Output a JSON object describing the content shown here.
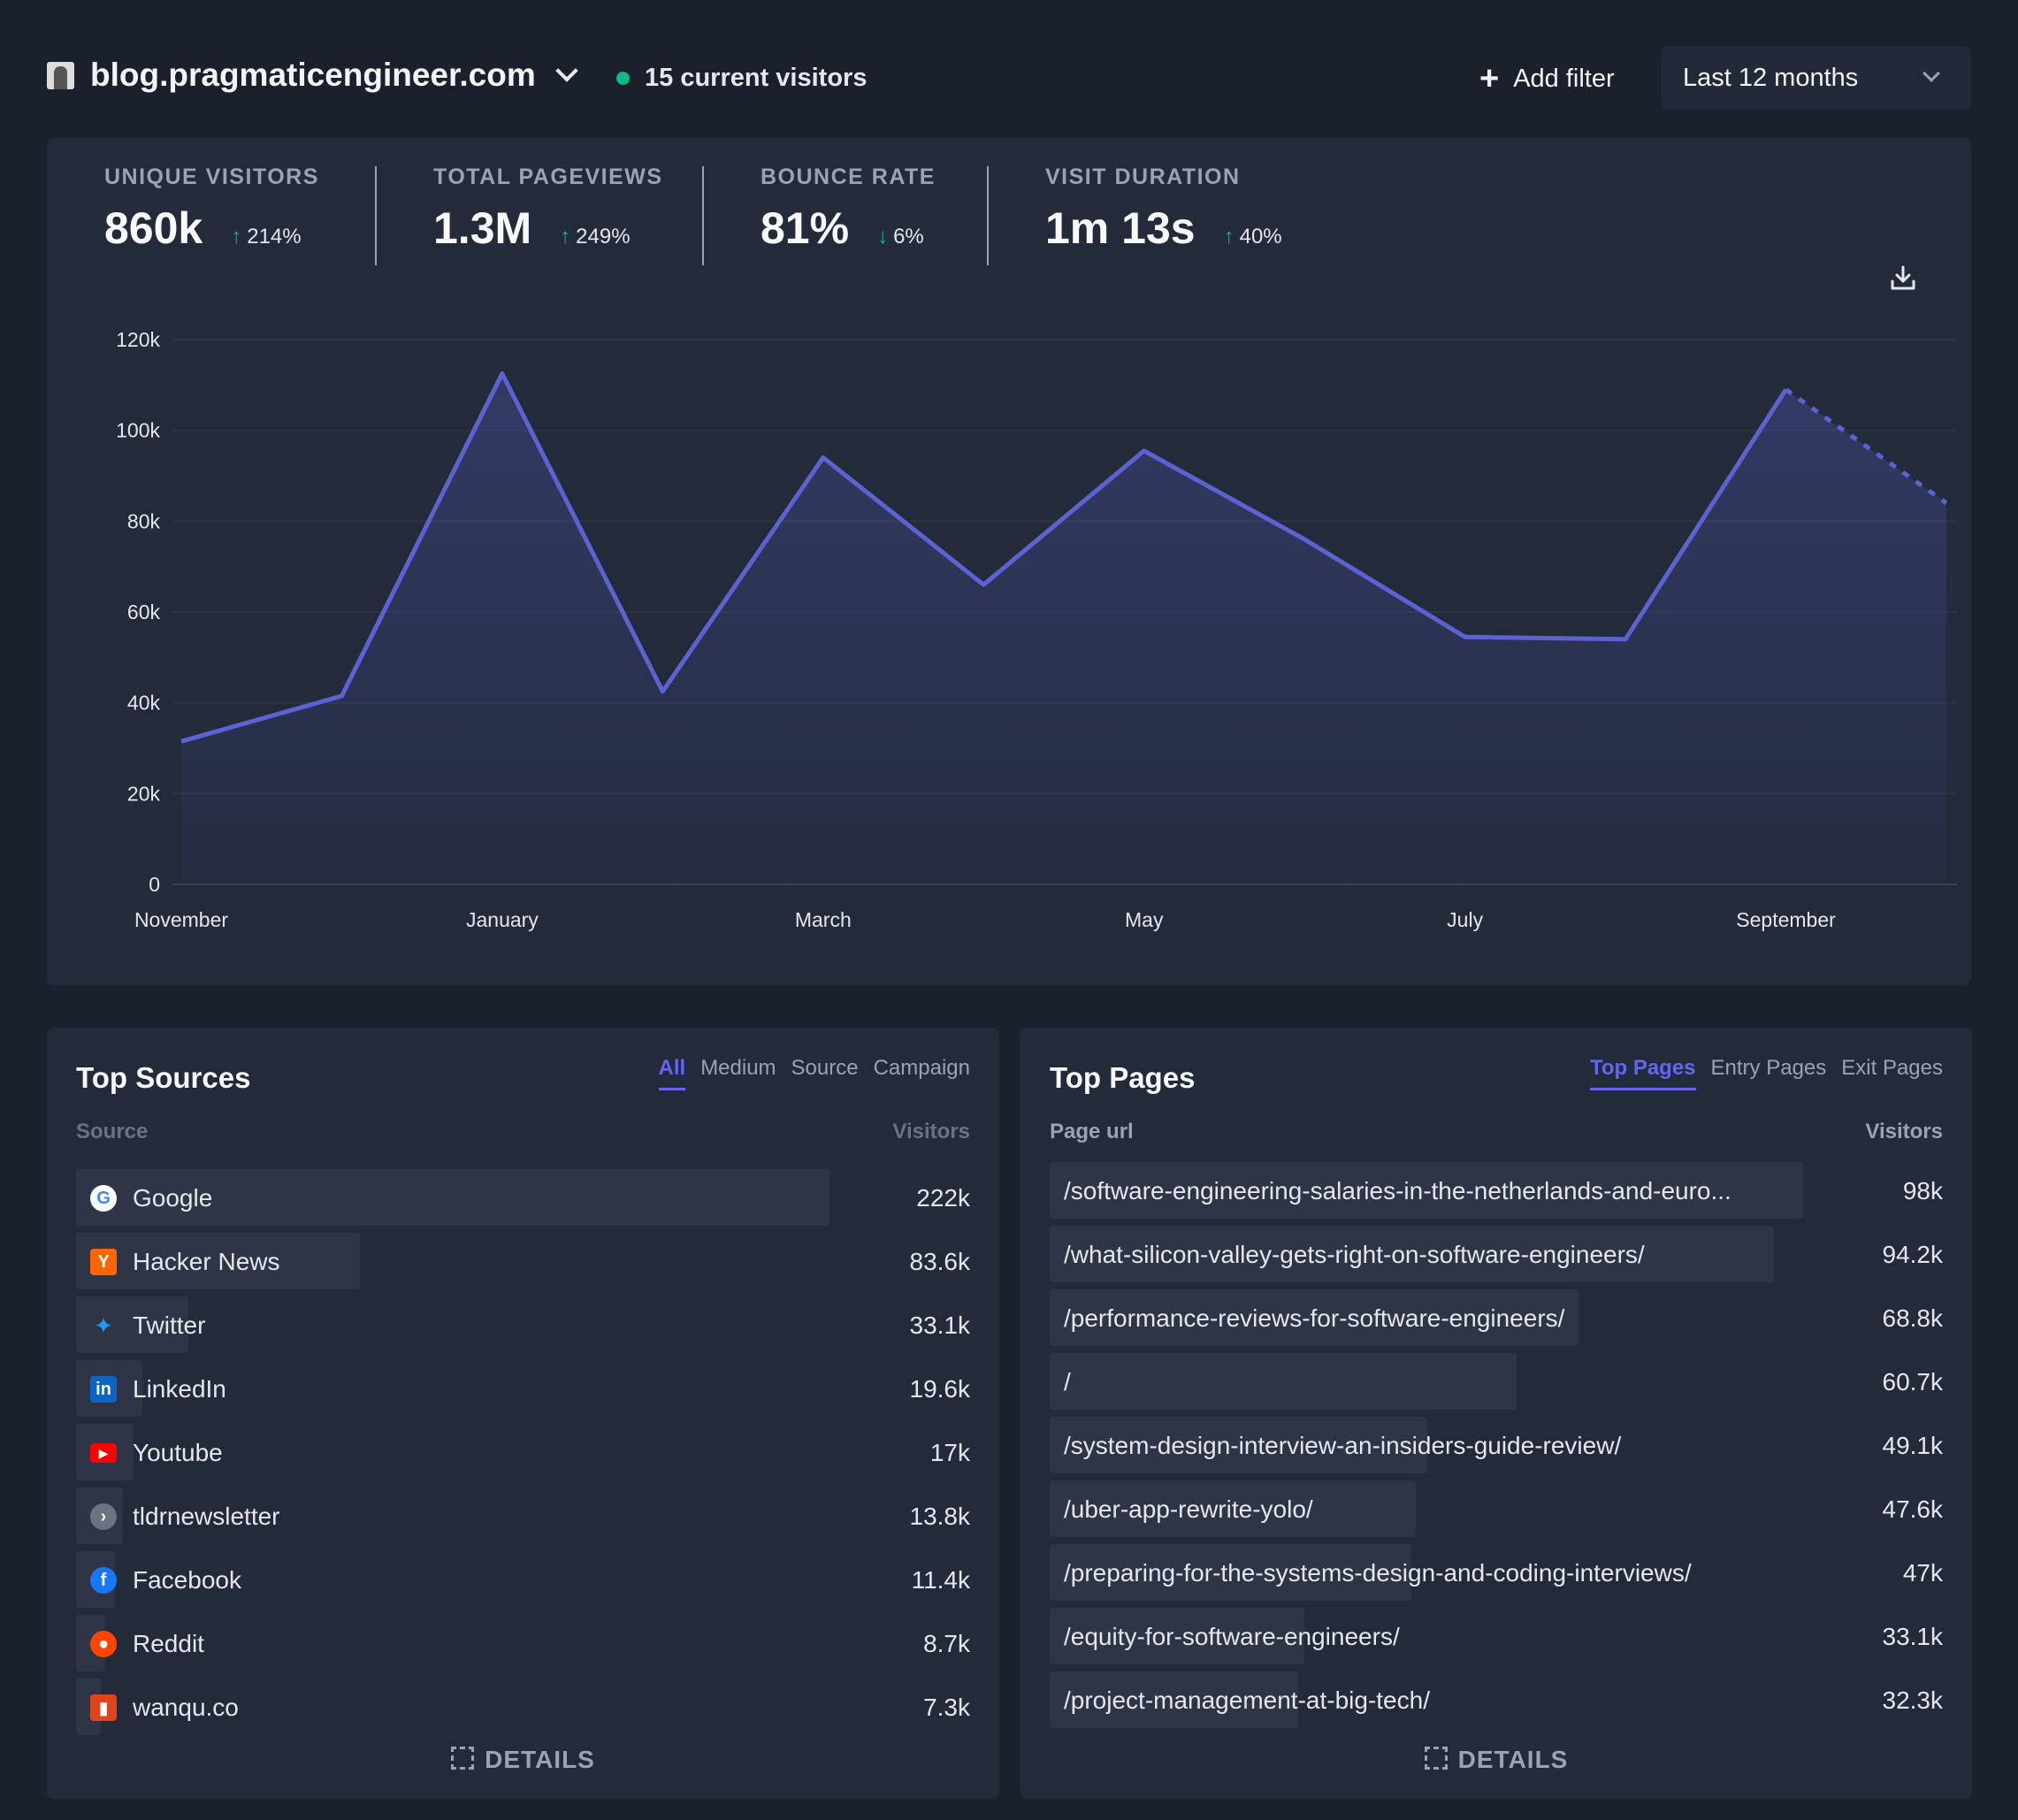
{
  "header": {
    "site_name": "blog.pragmaticengineer.com",
    "current_visitors": "15 current visitors",
    "add_filter": "Add filter",
    "period": "Last 12 months"
  },
  "stats": [
    {
      "label": "UNIQUE VISITORS",
      "value": "860k",
      "change": "214%",
      "direction": "up"
    },
    {
      "label": "TOTAL PAGEVIEWS",
      "value": "1.3M",
      "change": "249%",
      "direction": "up"
    },
    {
      "label": "BOUNCE RATE",
      "value": "81%",
      "change": "6%",
      "direction": "down"
    },
    {
      "label": "VISIT DURATION",
      "value": "1m 13s",
      "change": "40%",
      "direction": "up"
    }
  ],
  "chart_data": {
    "type": "area",
    "x": [
      "November",
      "December",
      "January",
      "February",
      "March",
      "April",
      "May",
      "June",
      "July",
      "August",
      "September",
      "October"
    ],
    "x_tick_labels": [
      "November",
      "January",
      "March",
      "May",
      "July",
      "September"
    ],
    "values": [
      31500,
      41500,
      112500,
      42500,
      94000,
      66000,
      95500,
      76000,
      54500,
      54000,
      109000,
      84000
    ],
    "ylim": [
      0,
      120000
    ],
    "y_tick_labels": [
      "0",
      "20k",
      "40k",
      "60k",
      "80k",
      "100k",
      "120k"
    ],
    "y_ticks": [
      0,
      20000,
      40000,
      60000,
      80000,
      100000,
      120000
    ],
    "incomplete_last_segment": true,
    "color": "#5b63d3",
    "grid": true
  },
  "sources": {
    "title": "Top Sources",
    "tabs": [
      "All",
      "Medium",
      "Source",
      "Campaign"
    ],
    "active_tab": "All",
    "col_label": "Source",
    "col_value": "Visitors",
    "details": "DETAILS",
    "rows": [
      {
        "name": "Google",
        "value": "222k",
        "visitors": 222000,
        "icon": "google-icon",
        "color": "#4285f4"
      },
      {
        "name": "Hacker News",
        "value": "83.6k",
        "visitors": 83600,
        "icon": "hacker-news-icon",
        "color": "#ff6600"
      },
      {
        "name": "Twitter",
        "value": "33.1k",
        "visitors": 33100,
        "icon": "twitter-icon",
        "color": "#1d9bf0"
      },
      {
        "name": "LinkedIn",
        "value": "19.6k",
        "visitors": 19600,
        "icon": "linkedin-icon",
        "color": "#0a66c2"
      },
      {
        "name": "Youtube",
        "value": "17k",
        "visitors": 17000,
        "icon": "youtube-icon",
        "color": "#ff0000"
      },
      {
        "name": "tldrnewsletter",
        "value": "13.8k",
        "visitors": 13800,
        "icon": "tldrnewsletter-icon",
        "color": "#6b7280"
      },
      {
        "name": "Facebook",
        "value": "11.4k",
        "visitors": 11400,
        "icon": "facebook-icon",
        "color": "#1877f2"
      },
      {
        "name": "Reddit",
        "value": "8.7k",
        "visitors": 8700,
        "icon": "reddit-icon",
        "color": "#ff4500"
      },
      {
        "name": "wanqu.co",
        "value": "7.3k",
        "visitors": 7300,
        "icon": "wanqu-icon",
        "color": "#e0441c"
      }
    ]
  },
  "pages": {
    "title": "Top Pages",
    "tabs": [
      "Top Pages",
      "Entry Pages",
      "Exit Pages"
    ],
    "active_tab": "Top Pages",
    "col_label": "Page url",
    "col_value": "Visitors",
    "details": "DETAILS",
    "rows": [
      {
        "url": "/software-engineering-salaries-in-the-netherlands-and-euro...",
        "value": "98k",
        "visitors": 98000
      },
      {
        "url": "/what-silicon-valley-gets-right-on-software-engineers/",
        "value": "94.2k",
        "visitors": 94200
      },
      {
        "url": "/performance-reviews-for-software-engineers/",
        "value": "68.8k",
        "visitors": 68800
      },
      {
        "url": "/",
        "value": "60.7k",
        "visitors": 60700
      },
      {
        "url": "/system-design-interview-an-insiders-guide-review/",
        "value": "49.1k",
        "visitors": 49100
      },
      {
        "url": "/uber-app-rewrite-yolo/",
        "value": "47.6k",
        "visitors": 47600
      },
      {
        "url": "/preparing-for-the-systems-design-and-coding-interviews/",
        "value": "47k",
        "visitors": 47000
      },
      {
        "url": "/equity-for-software-engineers/",
        "value": "33.1k",
        "visitors": 33100
      },
      {
        "url": "/project-management-at-big-tech/",
        "value": "32.3k",
        "visitors": 32300
      }
    ]
  }
}
